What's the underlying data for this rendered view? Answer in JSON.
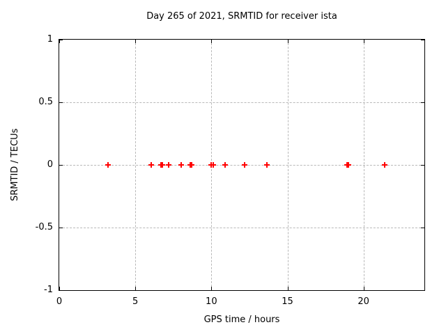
{
  "chart": {
    "title": "Day 265 of 2021, SRMTID for receiver ista",
    "xlabel": "GPS time / hours",
    "ylabel": "SRMTID / TECUs"
  },
  "chart_data": {
    "type": "scatter",
    "title": "Day 265 of 2021, SRMTID for receiver ista",
    "xlabel": "GPS time / hours",
    "ylabel": "SRMTID / TECUs",
    "xlim": [
      0,
      24
    ],
    "ylim": [
      -1,
      1
    ],
    "xticks": [
      0,
      5,
      10,
      15,
      20
    ],
    "yticks": [
      1,
      0.5,
      0,
      -0.5,
      -1
    ],
    "grid": true,
    "legend_position": "none",
    "marker": "plus",
    "marker_color": "#ff0000",
    "grid_color": "#b8b8b8",
    "axis_color": "#000000",
    "background_color": "#ffffff",
    "series": [
      {
        "name": "SRMTID",
        "x": [
          3.2,
          6.05,
          6.7,
          6.8,
          7.2,
          8.0,
          8.6,
          8.7,
          10.0,
          10.1,
          10.9,
          12.2,
          13.65,
          18.9,
          19.0,
          21.4
        ],
        "y": [
          0,
          0,
          0,
          0,
          0,
          0,
          0,
          0,
          0,
          0,
          0,
          0,
          0,
          0,
          0,
          0
        ]
      }
    ]
  }
}
